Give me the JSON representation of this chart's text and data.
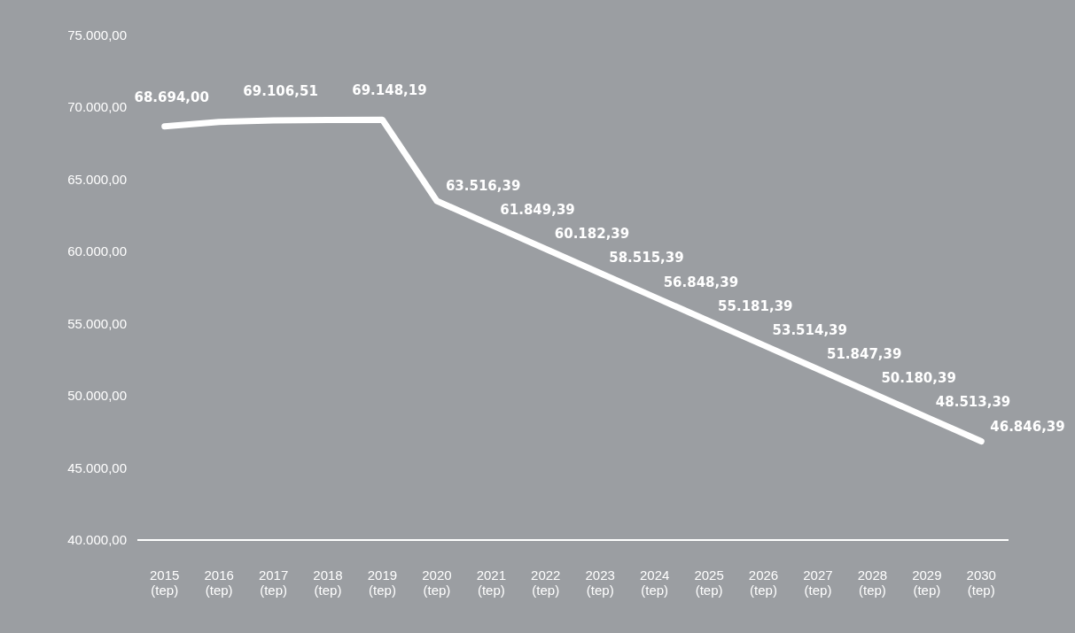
{
  "chart_data": {
    "type": "line",
    "categories": [
      "2015 (tep)",
      "2016 (tep)",
      "2017 (tep)",
      "2018 (tep)",
      "2019 (tep)",
      "2020 (tep)",
      "2021 (tep)",
      "2022 (tep)",
      "2023 (tep)",
      "2024 (tep)",
      "2025 (tep)",
      "2026 (tep)",
      "2027 (tep)",
      "2028 (tep)",
      "2029 (tep)",
      "2030 (tep)"
    ],
    "series": [
      {
        "color": "#ffffff",
        "values": [
          68694.0,
          69000,
          69106.51,
          69130,
          69148.19,
          63516.39,
          61849.39,
          60182.39,
          58515.39,
          56848.39,
          55181.39,
          53514.39,
          51847.39,
          50180.39,
          48513.39,
          46846.39
        ],
        "value_labels": [
          "68.694,00",
          null,
          "69.106,51",
          null,
          "69.148,19",
          "63.516,39",
          "61.849,39",
          "60.182,39",
          "58.515,39",
          "56.848,39",
          "55.181,39",
          "53.514,39",
          "51.847,39",
          "50.180,39",
          "48.513,39",
          "46.846,39"
        ]
      }
    ],
    "ylim": [
      40000,
      75000
    ],
    "yticks": [
      {
        "value": 40000,
        "label": "40.000,00"
      },
      {
        "value": 45000,
        "label": "45.000,00"
      },
      {
        "value": 50000,
        "label": "50.000,00"
      },
      {
        "value": 55000,
        "label": "55.000,00"
      },
      {
        "value": 60000,
        "label": "60.000,00"
      },
      {
        "value": 65000,
        "label": "65.000,00"
      },
      {
        "value": 70000,
        "label": "70.000,00"
      },
      {
        "value": 75000,
        "label": "75.000,00"
      }
    ],
    "grid": false,
    "marker": "none",
    "line_style": "solid"
  }
}
